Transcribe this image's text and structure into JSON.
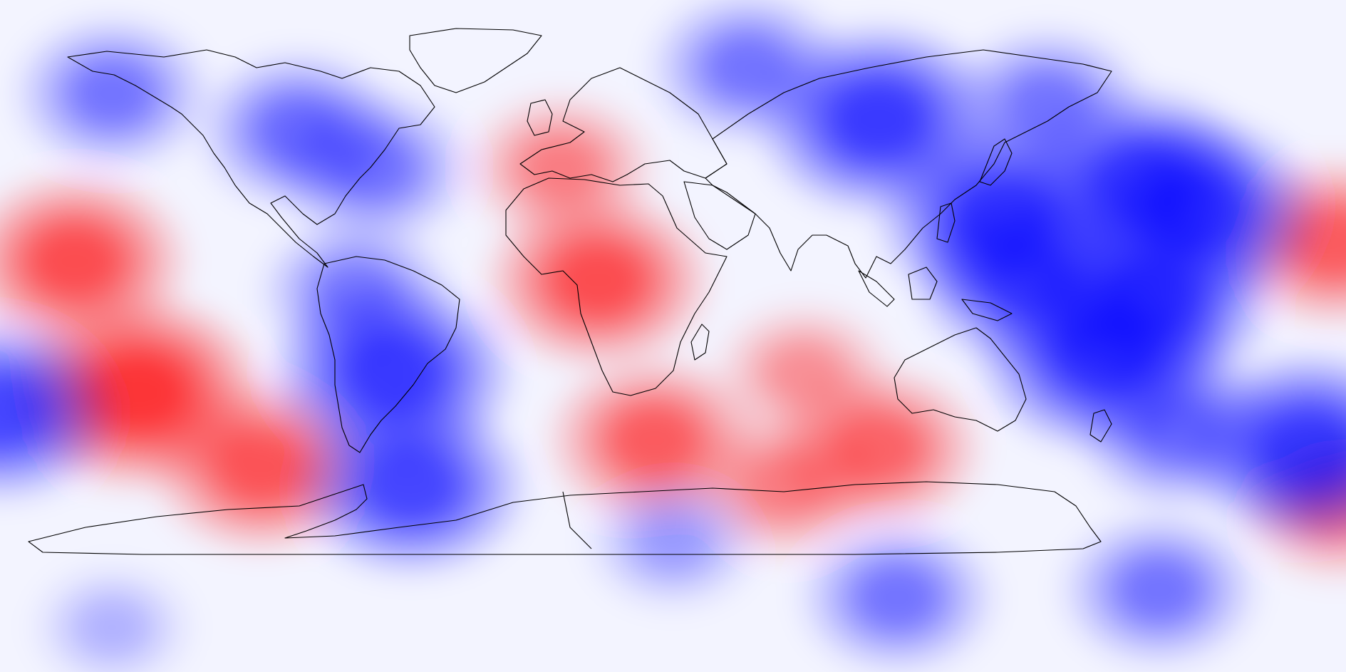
{
  "map": {
    "projection": "equirectangular",
    "field": "anomaly",
    "colormap": {
      "negative": "#0000ff",
      "neutral": "#ffffff",
      "positive": "#ff0000"
    },
    "coastline_color": "#000000",
    "anomalies": [
      {
        "name": "central-pacific-warm",
        "lon": -143,
        "lat": -15,
        "sign": 1,
        "strength": 1.0
      },
      {
        "name": "north-pacific-warm",
        "lon": -160,
        "lat": 20,
        "sign": 1,
        "strength": 0.8
      },
      {
        "name": "east-pacific-warm",
        "lon": -110,
        "lat": -35,
        "sign": 1,
        "strength": 0.75
      },
      {
        "name": "dateline-warm",
        "lon": 177,
        "lat": 25,
        "sign": 1,
        "strength": 0.7
      },
      {
        "name": "south-pacific-warm",
        "lon": 178,
        "lat": -45,
        "sign": 1,
        "strength": 0.55
      },
      {
        "name": "hawaii-cold",
        "lon": -180,
        "lat": -20,
        "sign": -1,
        "strength": 0.85
      },
      {
        "name": "south-atlantic-warm",
        "lon": -5,
        "lat": -28,
        "sign": 1,
        "strength": 0.7
      },
      {
        "name": "west-africa-warm",
        "lon": -20,
        "lat": 15,
        "sign": 1,
        "strength": 0.8
      },
      {
        "name": "north-atlantic-warm",
        "lon": -30,
        "lat": 45,
        "sign": 1,
        "strength": 0.5
      },
      {
        "name": "indian-ocean-warm",
        "lon": 55,
        "lat": -30,
        "sign": 1,
        "strength": 0.65
      },
      {
        "name": "southern-africa-warm",
        "lon": 30,
        "lat": -40,
        "sign": 1,
        "strength": 0.5
      },
      {
        "name": "se-atlantic-warm",
        "lon": 35,
        "lat": -10,
        "sign": 1,
        "strength": 0.4
      },
      {
        "name": "south-america-west-cold",
        "lon": -75,
        "lat": -10,
        "sign": -1,
        "strength": 0.95
      },
      {
        "name": "patagonia-cold",
        "lon": -70,
        "lat": -40,
        "sign": -1,
        "strength": 0.85
      },
      {
        "name": "central-america-cold",
        "lon": -85,
        "lat": 12,
        "sign": -1,
        "strength": 0.5
      },
      {
        "name": "russia-cold",
        "lon": 55,
        "lat": 58,
        "sign": -1,
        "strength": 0.95
      },
      {
        "name": "tibet-cold",
        "lon": 88,
        "lat": 32,
        "sign": -1,
        "strength": 1.0
      },
      {
        "name": "north-china-cold",
        "lon": 125,
        "lat": 42,
        "sign": -1,
        "strength": 0.85
      },
      {
        "name": "japan-cold",
        "lon": 140,
        "lat": 33,
        "sign": -1,
        "strength": 0.95
      },
      {
        "name": "philippines-cold",
        "lon": 128,
        "lat": 10,
        "sign": -1,
        "strength": 0.95
      },
      {
        "name": "indonesia-cold",
        "lon": 115,
        "lat": -5,
        "sign": -1,
        "strength": 1.0
      },
      {
        "name": "bay-of-bengal-cold",
        "lon": 95,
        "lat": 15,
        "sign": -1,
        "strength": 0.8
      },
      {
        "name": "australia-cold",
        "lon": 135,
        "lat": -25,
        "sign": -1,
        "strength": 0.6
      },
      {
        "name": "nz-east-cold",
        "lon": 170,
        "lat": -30,
        "sign": -1,
        "strength": 0.95
      },
      {
        "name": "north-america-cold",
        "lon": -100,
        "lat": 55,
        "sign": -1,
        "strength": 0.6
      },
      {
        "name": "alaska-cold",
        "lon": -150,
        "lat": 65,
        "sign": -1,
        "strength": 0.55
      },
      {
        "name": "hudson-cold",
        "lon": -80,
        "lat": 45,
        "sign": -1,
        "strength": 0.55
      },
      {
        "name": "siberia-cold",
        "lon": 100,
        "lat": 62,
        "sign": -1,
        "strength": 0.55
      },
      {
        "name": "arctic-cold",
        "lon": 20,
        "lat": 72,
        "sign": -1,
        "strength": 0.55
      },
      {
        "name": "antarctica-cold",
        "lon": 60,
        "lat": -70,
        "sign": -1,
        "strength": 0.55
      },
      {
        "name": "antarctica-east-cold",
        "lon": 130,
        "lat": -68,
        "sign": -1,
        "strength": 0.55
      },
      {
        "name": "ross-sea-cold",
        "lon": -150,
        "lat": -78,
        "sign": -1,
        "strength": 0.25
      },
      {
        "name": "southern-ocean-cold",
        "lon": 0,
        "lat": -55,
        "sign": -1,
        "strength": 0.35
      }
    ]
  }
}
